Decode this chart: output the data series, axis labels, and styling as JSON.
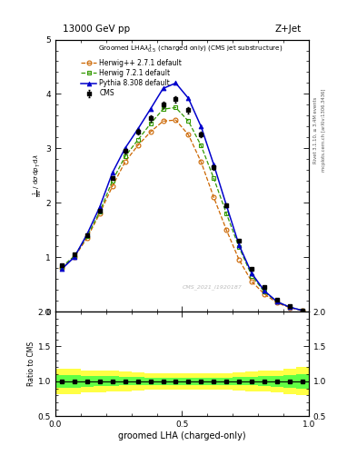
{
  "title_top": "13000 GeV pp",
  "title_right": "Z+Jet",
  "xlabel": "groomed LHA (charged-only)",
  "watermark": "CMS_2021_I1920187",
  "right_label": "mcplots.cern.ch [arXiv:1306.3436]",
  "right_label2": "Rivet 3.1.10, ≥ 3.4M events",
  "x_data": [
    0.025,
    0.075,
    0.125,
    0.175,
    0.225,
    0.275,
    0.325,
    0.375,
    0.425,
    0.475,
    0.525,
    0.575,
    0.625,
    0.675,
    0.725,
    0.775,
    0.825,
    0.875,
    0.925,
    0.975
  ],
  "cms_y": [
    0.85,
    1.05,
    1.4,
    1.85,
    2.45,
    2.95,
    3.3,
    3.55,
    3.8,
    3.9,
    3.7,
    3.25,
    2.65,
    1.95,
    1.3,
    0.78,
    0.45,
    0.22,
    0.1,
    0.02
  ],
  "herwig_pp_y": [
    0.8,
    1.0,
    1.35,
    1.8,
    2.3,
    2.75,
    3.05,
    3.3,
    3.5,
    3.52,
    3.25,
    2.75,
    2.1,
    1.5,
    0.95,
    0.55,
    0.32,
    0.16,
    0.07,
    0.02
  ],
  "herwig72_y": [
    0.82,
    1.02,
    1.38,
    1.83,
    2.4,
    2.85,
    3.15,
    3.45,
    3.72,
    3.75,
    3.5,
    3.05,
    2.45,
    1.8,
    1.18,
    0.66,
    0.36,
    0.18,
    0.08,
    0.02
  ],
  "pythia_y": [
    0.78,
    1.0,
    1.42,
    1.92,
    2.55,
    3.0,
    3.35,
    3.72,
    4.1,
    4.2,
    3.92,
    3.4,
    2.7,
    1.95,
    1.22,
    0.7,
    0.38,
    0.18,
    0.08,
    0.02
  ],
  "cms_color": "#000000",
  "herwig_pp_color": "#cc6600",
  "herwig72_color": "#339900",
  "pythia_color": "#0000cc",
  "ylim_main": [
    0,
    5.0
  ],
  "ylim_ratio": [
    0.5,
    2.0
  ],
  "background_color": "#ffffff",
  "yellow_low": [
    0.82,
    0.82,
    0.84,
    0.84,
    0.85,
    0.86,
    0.87,
    0.88,
    0.88,
    0.88,
    0.88,
    0.88,
    0.88,
    0.88,
    0.87,
    0.86,
    0.85,
    0.84,
    0.82,
    0.8
  ],
  "yellow_high": [
    1.18,
    1.18,
    1.16,
    1.16,
    1.15,
    1.14,
    1.13,
    1.12,
    1.12,
    1.12,
    1.12,
    1.12,
    1.12,
    1.12,
    1.13,
    1.14,
    1.15,
    1.16,
    1.18,
    1.2
  ],
  "green_low": [
    0.91,
    0.91,
    0.92,
    0.93,
    0.93,
    0.94,
    0.94,
    0.95,
    0.95,
    0.95,
    0.95,
    0.95,
    0.95,
    0.95,
    0.94,
    0.94,
    0.93,
    0.92,
    0.91,
    0.9
  ],
  "green_high": [
    1.09,
    1.09,
    1.08,
    1.07,
    1.07,
    1.06,
    1.06,
    1.05,
    1.05,
    1.05,
    1.05,
    1.05,
    1.05,
    1.05,
    1.06,
    1.06,
    1.07,
    1.08,
    1.09,
    1.1
  ]
}
